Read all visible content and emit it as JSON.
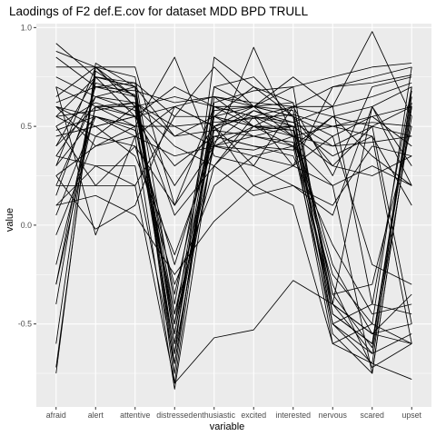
{
  "chart_data": {
    "type": "line",
    "title": "Laodings of F2 def.E.cov for dataset MDD BPD TRULL",
    "xlabel": "variable",
    "ylabel": "value",
    "categories": [
      "afraid",
      "alert",
      "attentive",
      "distressed",
      "enthusiastic",
      "excited",
      "interested",
      "nervous",
      "scared",
      "upset"
    ],
    "ylim": [
      -0.92,
      1.02
    ],
    "yticks": [
      -0.5,
      0.0,
      0.5,
      1.0
    ],
    "ytick_labels": [
      "-0.5",
      "0.0",
      "0.5",
      "1.0"
    ],
    "grid": true,
    "panel_background": "#ebebeb",
    "grid_color": "#ffffff",
    "line_color": "#000000",
    "series": [
      {
        "values": [
          0.92,
          0.75,
          0.55,
          -0.65,
          0.42,
          0.58,
          0.5,
          -0.45,
          -0.6,
          0.65
        ]
      },
      {
        "values": [
          0.88,
          0.8,
          0.6,
          -0.55,
          0.5,
          0.6,
          0.55,
          -0.5,
          -0.7,
          0.7
        ]
      },
      {
        "values": [
          -0.75,
          0.82,
          0.7,
          -0.8,
          0.6,
          0.55,
          0.5,
          -0.55,
          -0.75,
          0.6
        ]
      },
      {
        "values": [
          -0.72,
          0.78,
          0.65,
          -0.7,
          0.55,
          0.5,
          0.48,
          -0.4,
          -0.65,
          0.55
        ]
      },
      {
        "values": [
          0.2,
          0.65,
          0.7,
          0.45,
          0.55,
          0.6,
          0.45,
          0.4,
          0.5,
          -0.5
        ]
      },
      {
        "values": [
          0.3,
          0.55,
          0.5,
          0.5,
          0.4,
          0.45,
          0.5,
          0.35,
          0.45,
          -0.6
        ]
      },
      {
        "values": [
          0.6,
          0.5,
          0.55,
          0.3,
          0.45,
          0.4,
          0.38,
          0.55,
          0.35,
          0.2
        ]
      },
      {
        "values": [
          0.7,
          -0.05,
          0.45,
          0.6,
          0.5,
          0.55,
          0.6,
          0.25,
          0.7,
          0.75
        ]
      },
      {
        "values": [
          0.5,
          0.2,
          0.4,
          -0.3,
          0.2,
          0.35,
          0.3,
          0.45,
          -0.2,
          -0.3
        ]
      },
      {
        "values": [
          0.15,
          0.7,
          0.65,
          -0.45,
          0.3,
          0.5,
          0.4,
          0.55,
          0.5,
          0.45
        ]
      },
      {
        "values": [
          -0.3,
          0.6,
          0.5,
          -0.5,
          0.7,
          0.75,
          0.55,
          0.3,
          0.25,
          0.35
        ]
      },
      {
        "values": [
          0.55,
          0.45,
          0.6,
          0.65,
          0.6,
          0.5,
          0.45,
          0.5,
          0.55,
          0.6
        ]
      },
      {
        "values": [
          0.4,
          0.75,
          0.72,
          0.55,
          0.8,
          0.6,
          0.7,
          0.75,
          0.8,
          0.82
        ]
      },
      {
        "values": [
          0.62,
          0.7,
          0.68,
          0.62,
          0.65,
          0.62,
          0.6,
          0.6,
          0.98,
          0.55
        ]
      },
      {
        "values": [
          0.1,
          0.3,
          0.2,
          0.55,
          0.55,
          0.7,
          0.62,
          -0.4,
          0.6,
          0.3
        ]
      },
      {
        "values": [
          -0.6,
          0.8,
          0.65,
          -0.65,
          0.85,
          0.7,
          0.55,
          -0.35,
          -0.3,
          0.5
        ]
      },
      {
        "values": [
          0.8,
          0.8,
          0.75,
          -0.4,
          0.7,
          0.6,
          0.75,
          0.6,
          -0.4,
          0.7
        ]
      },
      {
        "values": [
          0.45,
          0.5,
          0.35,
          -0.15,
          0.4,
          0.9,
          0.45,
          -0.6,
          -0.5,
          -0.6
        ]
      },
      {
        "values": [
          0.25,
          -0.02,
          0.1,
          0.6,
          0.5,
          0.3,
          0.6,
          0.55,
          0.6,
          0.2
        ]
      },
      {
        "values": [
          -0.2,
          0.6,
          0.55,
          0.2,
          0.5,
          0.2,
          0.3,
          0.7,
          0.75,
          0.8
        ]
      },
      {
        "values": [
          0.55,
          0.75,
          0.7,
          -0.6,
          0.5,
          0.55,
          0.45,
          -0.3,
          -0.72,
          -0.6
        ]
      },
      {
        "values": [
          0.7,
          0.6,
          0.62,
          -0.5,
          0.4,
          0.5,
          0.5,
          -0.2,
          -0.55,
          -0.5
        ]
      },
      {
        "values": [
          0.35,
          0.3,
          0.3,
          -0.7,
          0.55,
          0.45,
          0.4,
          -0.5,
          -0.65,
          -0.55
        ]
      },
      {
        "values": [
          0.05,
          0.55,
          0.45,
          -0.83,
          0.45,
          0.4,
          0.35,
          -0.1,
          -0.45,
          -0.4
        ]
      },
      {
        "values": [
          0.6,
          0.4,
          0.5,
          0.85,
          0.35,
          0.3,
          0.2,
          0.1,
          0.4,
          0.35
        ]
      },
      {
        "values": [
          0.5,
          0.62,
          0.55,
          0.7,
          0.6,
          0.55,
          0.52,
          0.6,
          0.65,
          0.72
        ]
      },
      {
        "values": [
          -0.05,
          0.45,
          0.4,
          0.1,
          0.4,
          0.38,
          0.45,
          0.3,
          0.5,
          0.6
        ]
      },
      {
        "values": [
          0.65,
          0.8,
          0.8,
          0.1,
          0.6,
          0.6,
          0.55,
          0.45,
          0.55,
          0.4
        ]
      },
      {
        "values": [
          0.4,
          0.6,
          0.6,
          0.4,
          0.3,
          0.15,
          0.2,
          0.05,
          0.6,
          0.7
        ]
      },
      {
        "values": [
          -0.4,
          0.75,
          0.7,
          -0.75,
          0.65,
          0.6,
          0.58,
          -0.5,
          -0.4,
          -0.45
        ]
      },
      {
        "values": [
          0.48,
          0.55,
          0.48,
          -0.2,
          0.45,
          0.48,
          0.5,
          0.5,
          0.45,
          0.1
        ]
      },
      {
        "values": [
          0.2,
          0.2,
          0.2,
          -0.8,
          -0.57,
          -0.53,
          -0.28,
          -0.4,
          -0.55,
          -0.6
        ]
      },
      {
        "values": [
          0.3,
          0.8,
          0.6,
          0.05,
          0.3,
          0.55,
          0.3,
          0.2,
          -0.75,
          0.6
        ]
      },
      {
        "values": [
          0.1,
          0.15,
          0.05,
          -0.25,
          0.02,
          0.2,
          0.1,
          -0.6,
          -0.7,
          -0.78
        ]
      },
      {
        "values": [
          0.75,
          0.65,
          0.58,
          -0.35,
          0.55,
          0.5,
          0.48,
          -0.25,
          -0.5,
          0.8
        ]
      },
      {
        "values": [
          -0.3,
          0.72,
          0.66,
          -0.55,
          0.62,
          0.68,
          0.7,
          -0.45,
          -0.6,
          0.68
        ]
      },
      {
        "values": [
          0.55,
          0.58,
          0.62,
          0.5,
          0.52,
          0.54,
          0.56,
          0.5,
          0.52,
          0.5
        ]
      },
      {
        "values": [
          0.45,
          0.5,
          0.55,
          0.6,
          0.65,
          0.5,
          0.6,
          0.7,
          0.72,
          0.76
        ]
      },
      {
        "values": [
          0.25,
          0.4,
          0.45,
          0.35,
          0.4,
          0.35,
          0.4,
          0.2,
          0.3,
          0.2
        ]
      },
      {
        "values": [
          0.85,
          0.7,
          0.72,
          -0.6,
          0.58,
          0.6,
          0.62,
          -0.35,
          -0.62,
          0.62
        ]
      },
      {
        "values": [
          0.6,
          0.55,
          0.5,
          -0.45,
          0.48,
          0.45,
          0.42,
          -0.4,
          -0.55,
          -0.35
        ]
      },
      {
        "values": [
          0.35,
          0.65,
          0.62,
          0.45,
          0.48,
          0.58,
          0.52,
          0.4,
          0.42,
          0.45
        ]
      }
    ]
  }
}
